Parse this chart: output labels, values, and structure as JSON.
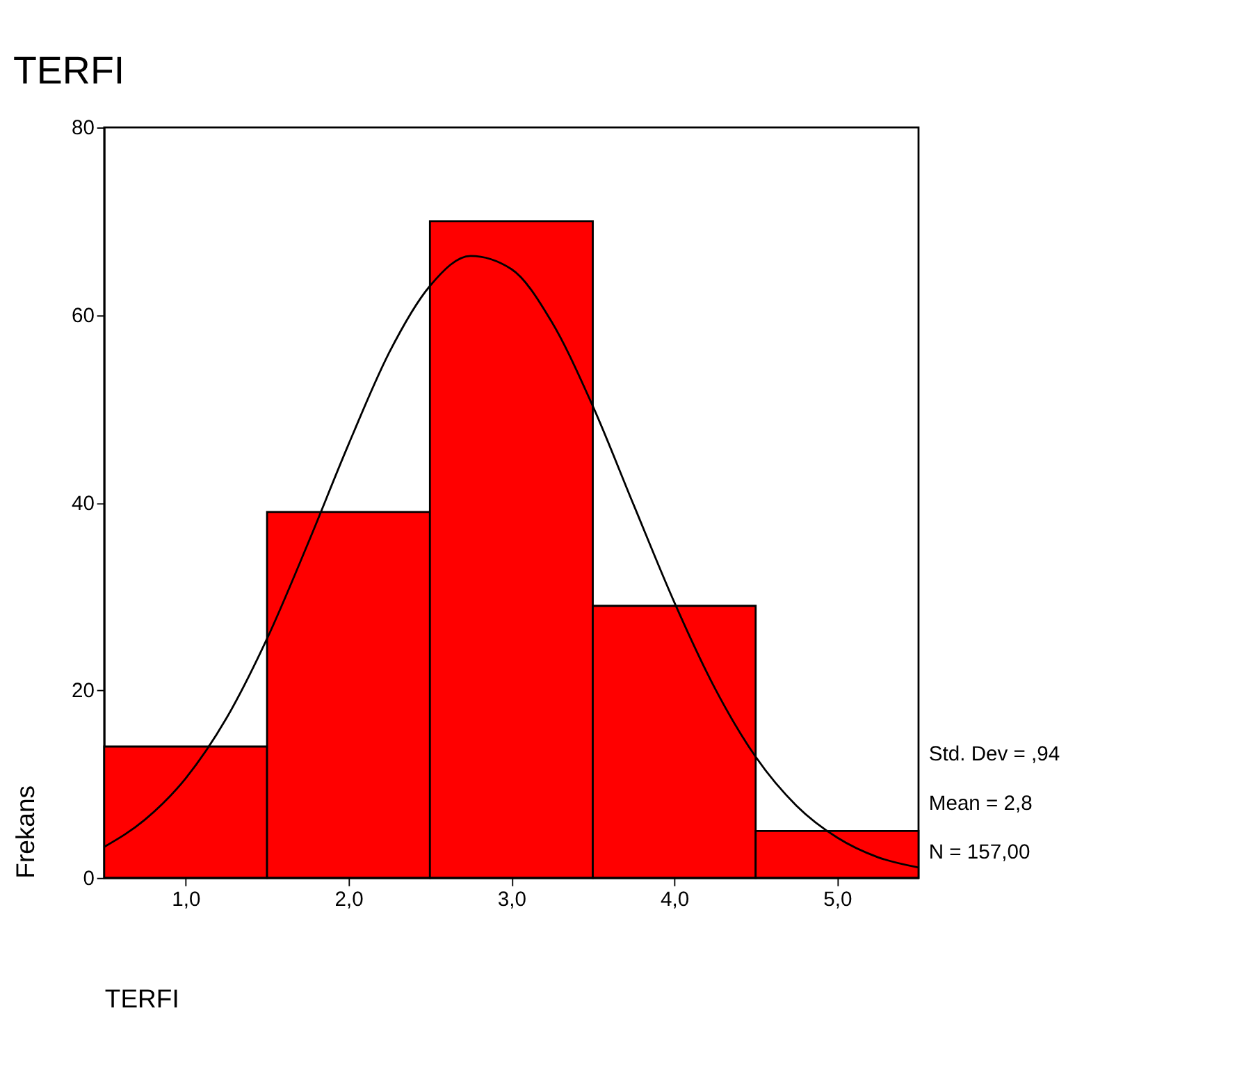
{
  "chart_data": {
    "type": "histogram",
    "title": "TERFI",
    "xlabel": "TERFI",
    "ylabel": "Frekans",
    "bins": [
      0.5,
      1.5,
      2.5,
      3.5,
      4.5,
      5.5
    ],
    "values": [
      14,
      39,
      70,
      29,
      5
    ],
    "color": "#ff0000",
    "series": [
      {
        "type": "line",
        "color": "#000000",
        "x": [
          0.5,
          0.75,
          1.0,
          1.25,
          1.5,
          1.75,
          2.0,
          2.25,
          2.5,
          2.75,
          3.0,
          3.25,
          3.5,
          3.75,
          4.0,
          4.25,
          4.5,
          4.75,
          5.0,
          5.25,
          5.5
        ],
        "values": [
          3.3,
          6.2,
          10.6,
          17,
          25.5,
          35.6,
          46.2,
          56,
          63.1,
          66.3,
          64.9,
          59.2,
          50.3,
          39.8,
          29.4,
          20.2,
          12.9,
          7.7,
          4.3,
          2.2,
          1.1
        ]
      }
    ],
    "xlim": [
      0.5,
      5.5
    ],
    "xticks": [
      {
        "value": 1,
        "label": "1,0"
      },
      {
        "value": 2,
        "label": "2,0"
      },
      {
        "value": 3,
        "label": "3,0"
      },
      {
        "value": 4,
        "label": "4,0"
      },
      {
        "value": 5,
        "label": "5,0"
      }
    ],
    "ylim": [
      0,
      80
    ],
    "yticks": [
      0,
      20,
      40,
      60,
      80
    ],
    "grid": false,
    "annotations": [
      "Std. Dev = ,94",
      "Mean = 2,8",
      "N = 157,00"
    ]
  }
}
